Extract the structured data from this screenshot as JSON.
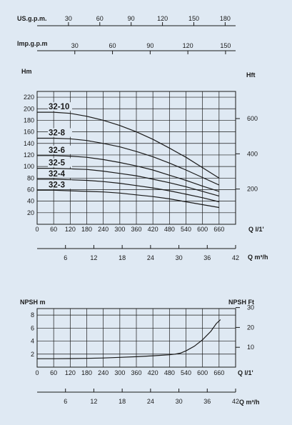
{
  "colors": {
    "background": "#dfe9f3",
    "grid": "#1a1a1a",
    "curve": "#1a1a1a"
  },
  "top_scales": {
    "usgpm": {
      "label": "US.g.p.m.",
      "ticks": [
        30,
        60,
        90,
        120,
        150,
        180
      ]
    },
    "impgpm": {
      "label": "Imp.g.p.m",
      "ticks": [
        30,
        60,
        90,
        120,
        150
      ]
    }
  },
  "chart_data": [
    {
      "type": "line",
      "title": "",
      "ylabel_left": "Hm",
      "ylabel_right": "Hft",
      "xlabel": "Q l/1'",
      "xlabel2": "Q m³/h",
      "xlim": [
        0,
        720
      ],
      "ylim": [
        0,
        230
      ],
      "yticks": [
        20,
        40,
        60,
        80,
        100,
        120,
        140,
        160,
        180,
        200,
        220
      ],
      "xticks": [
        0,
        60,
        120,
        180,
        240,
        300,
        360,
        420,
        480,
        540,
        600,
        660
      ],
      "xticks2": [
        6,
        12,
        18,
        24,
        30,
        36,
        42
      ],
      "yticks_right": [
        200,
        400,
        600
      ],
      "grid": true,
      "series": [
        {
          "name": "32-10",
          "x": [
            0,
            60,
            120,
            180,
            240,
            300,
            360,
            420,
            480,
            540,
            600,
            660
          ],
          "y": [
            194,
            194,
            192,
            187,
            180,
            171,
            160,
            147,
            132,
            116,
            98,
            80
          ]
        },
        {
          "name": "32-8",
          "x": [
            0,
            60,
            120,
            180,
            240,
            300,
            360,
            420,
            480,
            540,
            600,
            660
          ],
          "y": [
            149,
            149,
            148,
            145,
            140,
            134,
            126,
            117,
            106,
            94,
            81,
            68
          ]
        },
        {
          "name": "32-6",
          "x": [
            0,
            60,
            120,
            180,
            240,
            300,
            360,
            420,
            480,
            540,
            600,
            660
          ],
          "y": [
            119,
            119,
            118,
            116,
            112,
            107,
            101,
            94,
            85,
            76,
            66,
            57
          ]
        },
        {
          "name": "32-5",
          "x": [
            0,
            60,
            120,
            180,
            240,
            300,
            360,
            420,
            480,
            540,
            600,
            660
          ],
          "y": [
            97,
            97,
            96,
            95,
            92,
            88,
            84,
            78,
            72,
            65,
            57,
            49
          ]
        },
        {
          "name": "32-4",
          "x": [
            0,
            60,
            120,
            180,
            240,
            300,
            360,
            420,
            480,
            540,
            600,
            660
          ],
          "y": [
            78,
            78,
            77,
            76,
            74,
            71,
            67,
            63,
            58,
            52,
            46,
            39
          ]
        },
        {
          "name": "32-3",
          "x": [
            0,
            60,
            120,
            180,
            240,
            300,
            360,
            420,
            480,
            540,
            600,
            660
          ],
          "y": [
            59,
            59,
            58,
            57,
            56,
            54,
            51,
            48,
            44,
            39,
            34,
            29
          ]
        }
      ]
    },
    {
      "type": "line",
      "title": "",
      "ylabel_left": "NPSH  m",
      "ylabel_right": "NPSH  Ft",
      "xlabel": "Q l/1'",
      "xlabel2": "Q m³/h",
      "xlim": [
        0,
        720
      ],
      "ylim": [
        0,
        9
      ],
      "yticks": [
        2,
        4,
        6,
        8
      ],
      "xticks": [
        0,
        60,
        120,
        180,
        240,
        300,
        360,
        420,
        480,
        540,
        600,
        660
      ],
      "xticks2": [
        6,
        12,
        18,
        24,
        30,
        36,
        42
      ],
      "yticks_right": [
        10,
        20,
        30
      ],
      "grid": true,
      "series": [
        {
          "x": [
            0,
            60,
            120,
            180,
            240,
            300,
            360,
            420,
            480,
            500,
            520,
            540,
            570,
            600,
            630,
            650,
            665
          ],
          "y": [
            1.3,
            1.3,
            1.32,
            1.35,
            1.4,
            1.5,
            1.6,
            1.75,
            1.9,
            2.0,
            2.15,
            2.5,
            3.2,
            4.2,
            5.5,
            6.7,
            7.3
          ]
        }
      ]
    }
  ]
}
